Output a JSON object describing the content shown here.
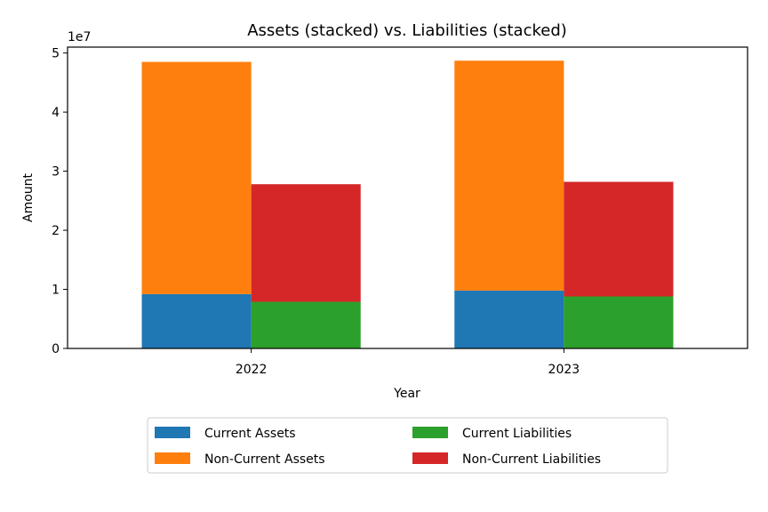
{
  "chart_data": {
    "type": "bar",
    "title": "Assets (stacked) vs. Liabilities (stacked)",
    "xlabel": "Year",
    "ylabel": "Amount",
    "y_offset_label": "1e7",
    "y_scale": 10000000,
    "categories": [
      "2022",
      "2023"
    ],
    "ylim": [
      0,
      51000000
    ],
    "yticks": [
      0,
      10000000,
      20000000,
      30000000,
      40000000,
      50000000
    ],
    "ytick_labels": [
      "0",
      "1",
      "2",
      "3",
      "4",
      "5"
    ],
    "grid": false,
    "legend_position": "bottom-center",
    "groups": [
      {
        "name": "assets",
        "series": [
          {
            "name": "Current Assets",
            "color": "#1f77b4",
            "values": [
              9200000,
              9800000
            ]
          },
          {
            "name": "Non-Current Assets",
            "color": "#ff7f0e",
            "values": [
              39300000,
              38900000
            ]
          }
        ]
      },
      {
        "name": "liabilities",
        "series": [
          {
            "name": "Current Liabilities",
            "color": "#2ca02c",
            "values": [
              7900000,
              8800000
            ]
          },
          {
            "name": "Non-Current Liabilities",
            "color": "#d62728",
            "values": [
              19900000,
              19400000
            ]
          }
        ]
      }
    ],
    "legend": [
      {
        "label": "Current Assets",
        "color": "#1f77b4"
      },
      {
        "label": "Non-Current Assets",
        "color": "#ff7f0e"
      },
      {
        "label": "Current Liabilities",
        "color": "#2ca02c"
      },
      {
        "label": "Non-Current Liabilities",
        "color": "#d62728"
      }
    ]
  }
}
